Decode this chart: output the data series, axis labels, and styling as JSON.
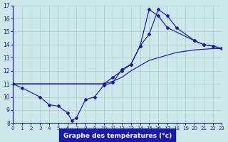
{
  "xlabel": "Graphe des températures (°c)",
  "bg_color": "#cce8ea",
  "line_color": "#1a1aaa",
  "grid_color": "#aacccc",
  "xlim": [
    0,
    23
  ],
  "ylim": [
    8,
    17
  ],
  "xticks": [
    0,
    1,
    2,
    3,
    4,
    5,
    6,
    7,
    8,
    9,
    10,
    11,
    12,
    13,
    14,
    15,
    16,
    17,
    18,
    19,
    20,
    21,
    22,
    23
  ],
  "yticks": [
    8,
    9,
    10,
    11,
    12,
    13,
    14,
    15,
    16,
    17
  ],
  "line1_x": [
    0,
    1,
    3,
    4,
    5,
    6,
    6.5,
    7,
    8,
    9,
    10,
    11,
    12,
    13,
    14,
    15,
    16,
    17,
    20,
    21,
    22,
    23
  ],
  "line1_y": [
    11.0,
    10.7,
    10.0,
    9.4,
    9.3,
    8.8,
    8.2,
    8.4,
    9.8,
    10.0,
    10.9,
    11.1,
    12.1,
    12.5,
    13.9,
    16.7,
    16.2,
    15.3,
    14.3,
    14.0,
    13.9,
    13.7
  ],
  "line2_x": [
    0,
    10,
    11,
    12,
    13,
    14,
    15,
    16,
    17,
    18,
    20,
    21,
    22,
    23
  ],
  "line2_y": [
    11.0,
    11.0,
    11.5,
    12.0,
    12.5,
    13.9,
    14.8,
    16.7,
    16.2,
    15.3,
    14.3,
    14.0,
    13.9,
    13.7
  ],
  "line3_x": [
    0,
    10,
    11,
    12,
    13,
    14,
    15,
    16,
    17,
    18,
    19,
    20,
    21,
    22,
    23
  ],
  "line3_y": [
    11.0,
    11.0,
    11.2,
    11.5,
    12.0,
    12.4,
    12.8,
    13.0,
    13.2,
    13.4,
    13.5,
    13.6,
    13.65,
    13.7,
    13.7
  ]
}
